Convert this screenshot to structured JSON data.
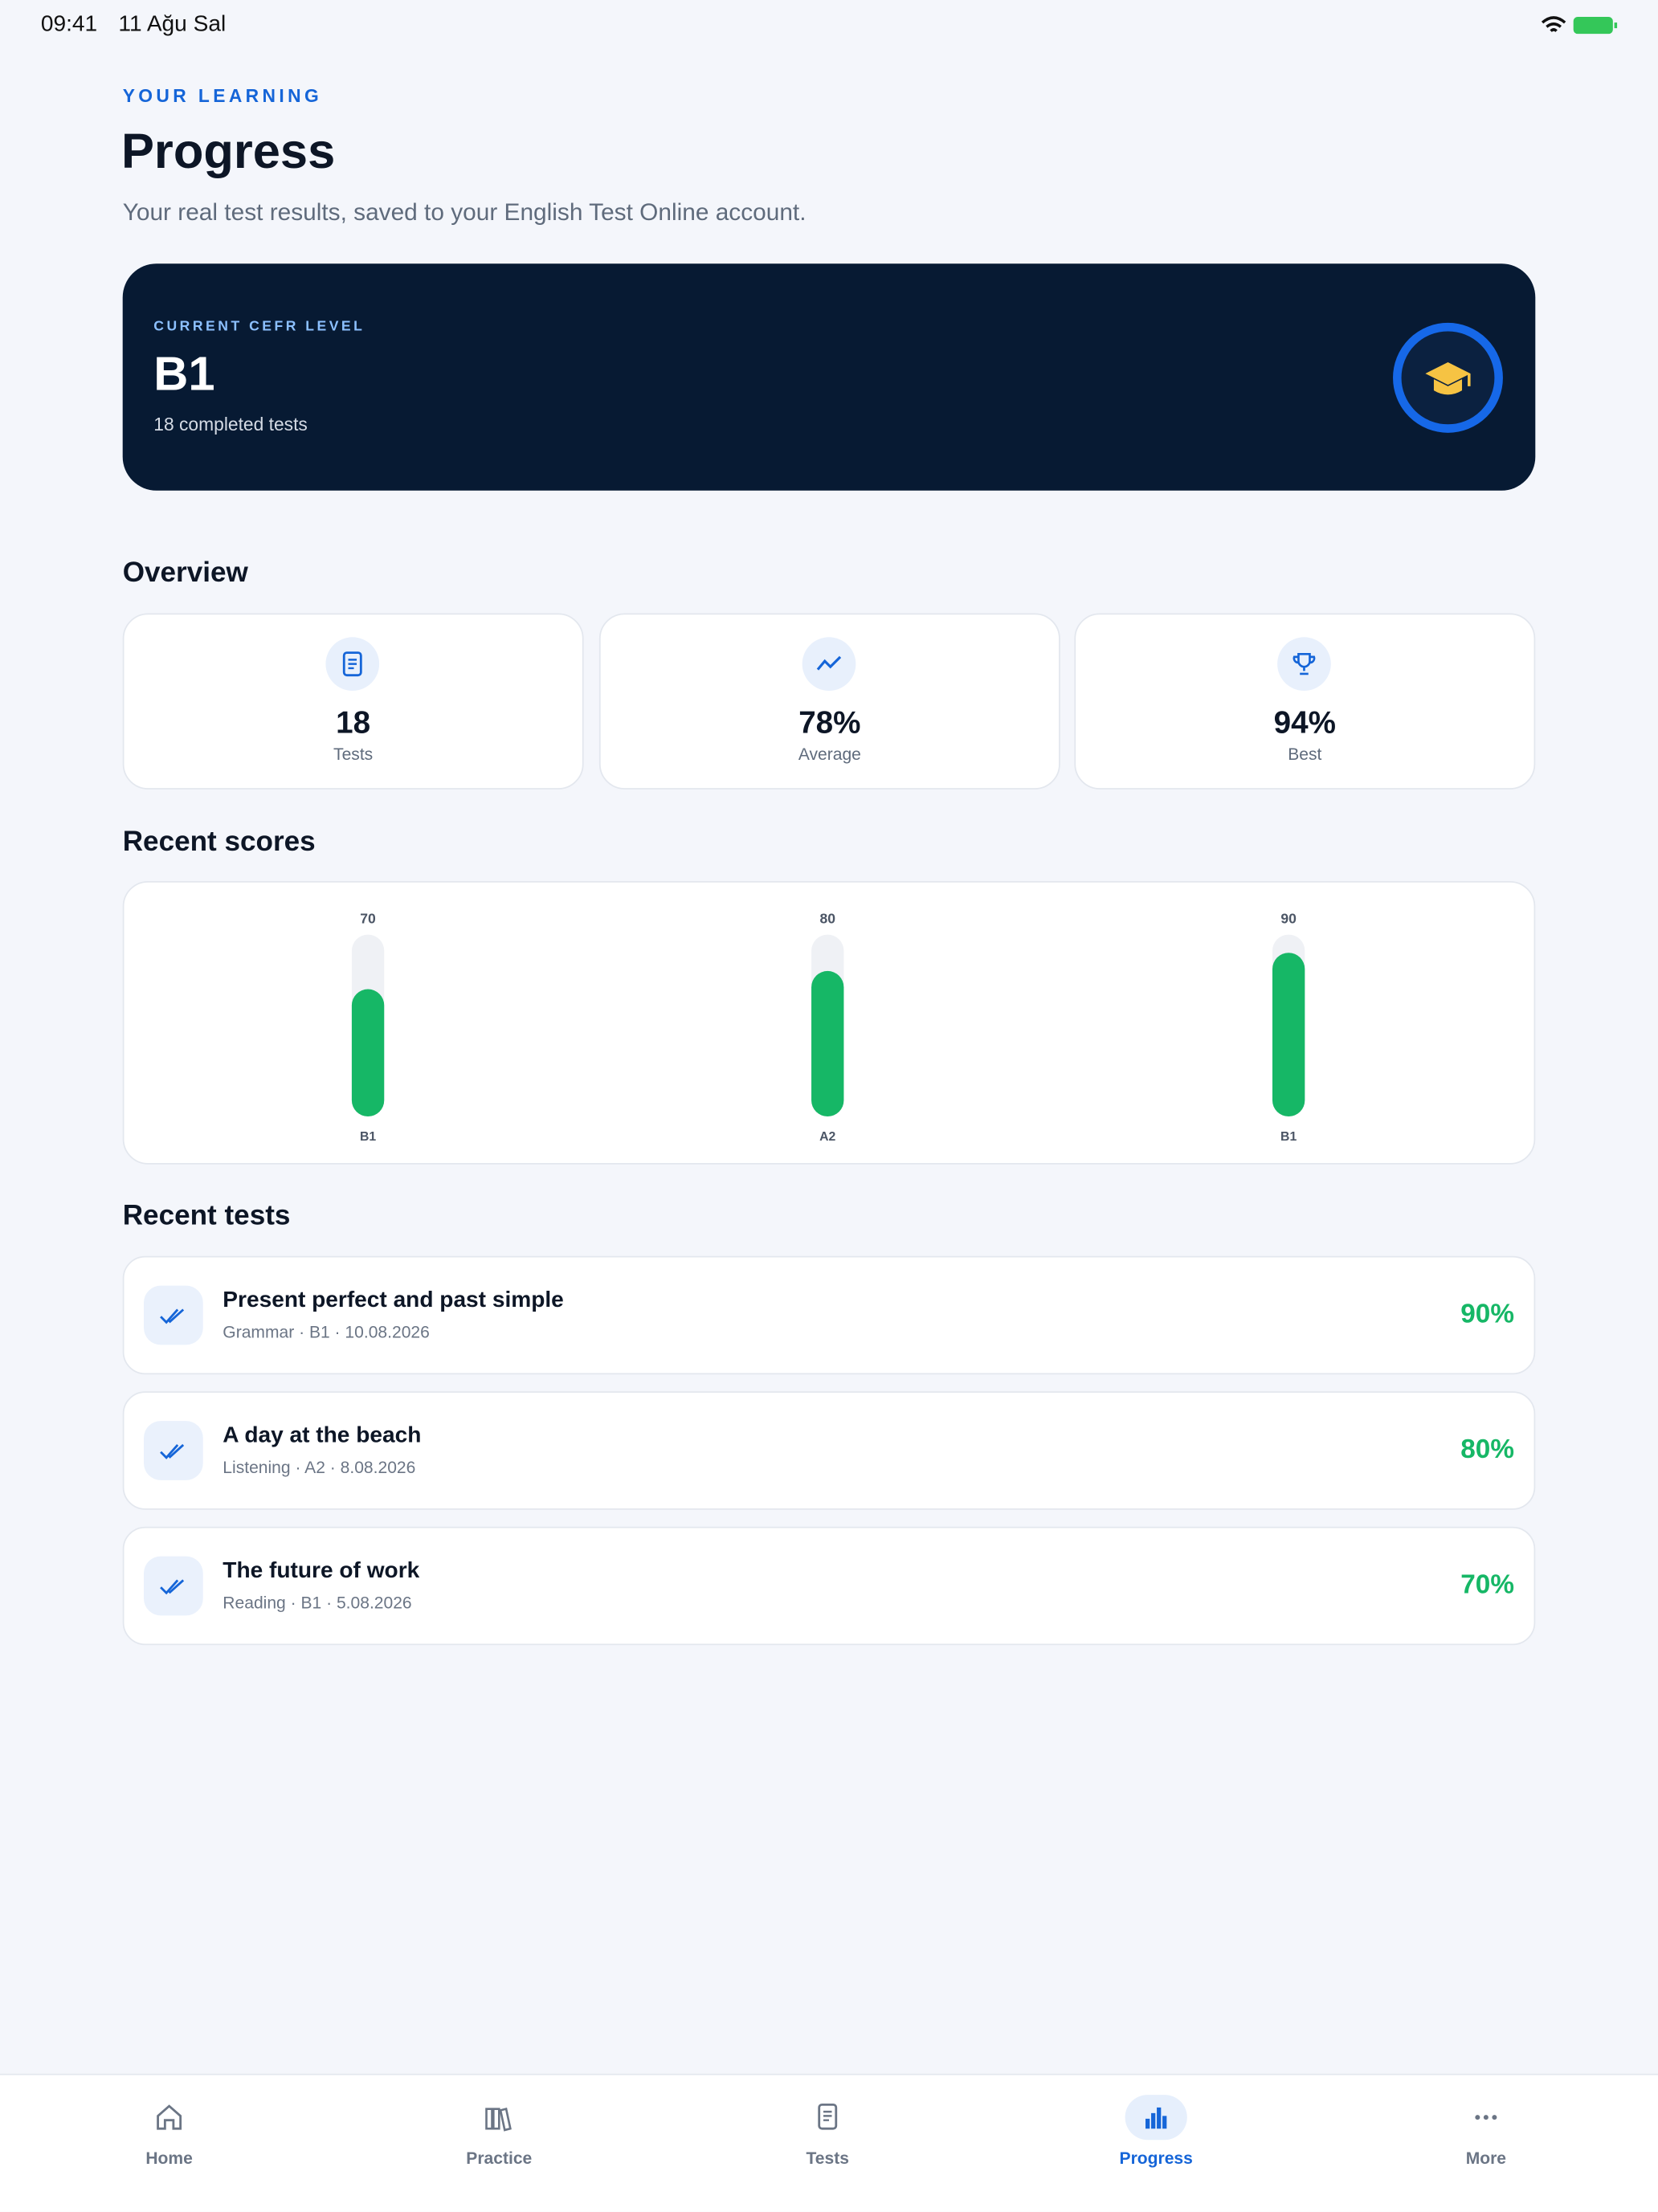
{
  "status_bar": {
    "time": "09:41",
    "date": "11 Ağu Sal"
  },
  "header": {
    "eyebrow": "YOUR LEARNING",
    "title": "Progress",
    "subtitle": "Your real test results, saved to your English Test Online account."
  },
  "level_card": {
    "label": "CURRENT CEFR LEVEL",
    "level": "B1",
    "detail": "18 completed tests"
  },
  "overview": {
    "title": "Overview",
    "stats": [
      {
        "value": "18",
        "label": "Tests"
      },
      {
        "value": "78%",
        "label": "Average"
      },
      {
        "value": "94%",
        "label": "Best"
      }
    ]
  },
  "chart_data": {
    "type": "bar",
    "title": "Recent scores",
    "categories": [
      "B1",
      "A2",
      "B1"
    ],
    "values": [
      70,
      80,
      90
    ],
    "color": "#16b766",
    "ylim": [
      0,
      100
    ]
  },
  "recent_tests": {
    "title": "Recent tests",
    "items": [
      {
        "title": "Present perfect and past simple",
        "meta": "Grammar · B1 · 10.08.2026",
        "score": "90%"
      },
      {
        "title": "A day at the beach",
        "meta": "Listening · A2 · 8.08.2026",
        "score": "80%"
      },
      {
        "title": "The future of work",
        "meta": "Reading · B1 · 5.08.2026",
        "score": "70%"
      }
    ]
  },
  "tab_bar": {
    "items": [
      "Home",
      "Practice",
      "Tests",
      "Progress",
      "More"
    ]
  }
}
